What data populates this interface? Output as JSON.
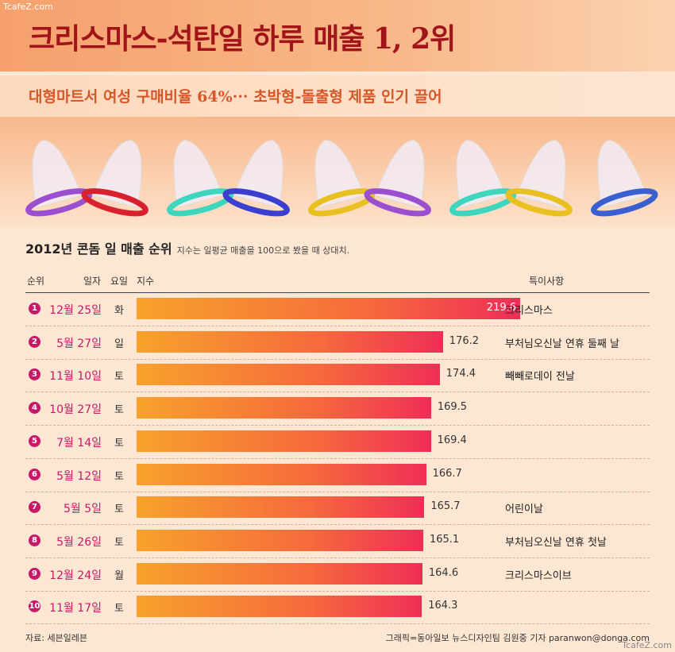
{
  "watermark_top": "TcafeZ.com",
  "watermark_bottom": "TcafeZ.com",
  "title": "크리스마스-석탄일 하루 매출 1, 2위",
  "subtitle": "대형마트서 여성 구매비율 64%··· 초박형-돌출형 제품 인기 끌어",
  "condom_colors": [
    "#9b4fd0",
    "#d8202e",
    "#3fd6c0",
    "#3a3fd0",
    "#e8c020",
    "#9b4fd0",
    "#3fd6c0",
    "#e8c020",
    "#3a5fd0"
  ],
  "chart_data": {
    "type": "bar",
    "orientation": "horizontal",
    "title": "2012년 콘돔 일 매출 순위",
    "subtitle": "지수는 일평균 매출을 100으로 봤을 때 상대치.",
    "columns": {
      "rank": "순위",
      "date": "일자",
      "dow": "요일",
      "value": "지수",
      "note": "특이사항"
    },
    "rows": [
      {
        "rank": "1",
        "date": "12월 25일",
        "dow": "화",
        "value": 219.6,
        "label": "219.6",
        "note": "크리스마스"
      },
      {
        "rank": "2",
        "date": "5월 27일",
        "dow": "일",
        "value": 176.2,
        "label": "176.2",
        "note": "부처님오신날 연휴 둘째 날"
      },
      {
        "rank": "3",
        "date": "11월 10일",
        "dow": "토",
        "value": 174.4,
        "label": "174.4",
        "note": "빼빼로데이 전날"
      },
      {
        "rank": "4",
        "date": "10월 27일",
        "dow": "토",
        "value": 169.5,
        "label": "169.5",
        "note": ""
      },
      {
        "rank": "5",
        "date": "7월 14일",
        "dow": "토",
        "value": 169.4,
        "label": "169.4",
        "note": ""
      },
      {
        "rank": "6",
        "date": "5월 12일",
        "dow": "토",
        "value": 166.7,
        "label": "166.7",
        "note": ""
      },
      {
        "rank": "7",
        "date": "5월 5일",
        "dow": "토",
        "value": 165.7,
        "label": "165.7",
        "note": "어린이날"
      },
      {
        "rank": "8",
        "date": "5월 26일",
        "dow": "토",
        "value": 165.1,
        "label": "165.1",
        "note": "부처님오신날 연휴 첫날"
      },
      {
        "rank": "9",
        "date": "12월 24일",
        "dow": "월",
        "value": 164.6,
        "label": "164.6",
        "note": "크리스마스이브"
      },
      {
        "rank": "10",
        "date": "11월 17일",
        "dow": "토",
        "value": 164.3,
        "label": "164.3",
        "note": ""
      }
    ],
    "bar_color_start": "#f7a22c",
    "bar_color_end": "#ef2e57"
  },
  "source": "자료: 세븐일레븐",
  "credit": "그래픽=동아일보 뉴스디자인팀 김원중 기자 paranwon@donga.com"
}
